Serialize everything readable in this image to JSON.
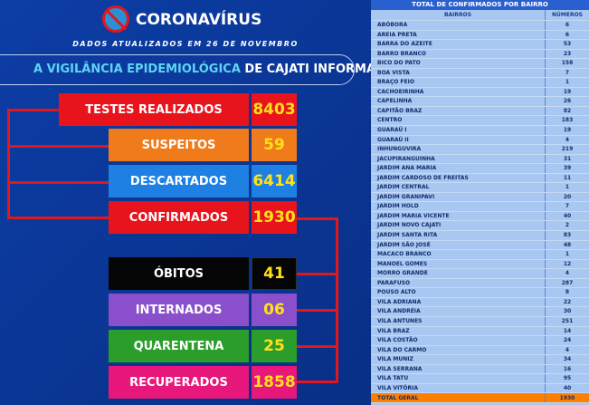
{
  "header": {
    "brand": "CORONAVÍRUS",
    "date": "DADOS ATUALIZADOS EM 26 DE NOVEMBRO",
    "headline_highlight": "A VIGILÂNCIA EPIDEMIOLÓGICA",
    "headline_rest": " DE CAJATI INFORMA:"
  },
  "stats": [
    {
      "label": "TESTES REALIZADOS",
      "value": "8403",
      "color": "#e8141b"
    },
    {
      "label": "SUSPEITOS",
      "value": "59",
      "color": "#ef7b1a"
    },
    {
      "label": "DESCARTADOS",
      "value": "6414",
      "color": "#1f80e3"
    },
    {
      "label": "CONFIRMADOS",
      "value": "1930",
      "color": "#e8141b"
    },
    {
      "label": "ÓBITOS",
      "value": "41",
      "color": "#050505"
    },
    {
      "label": "INTERNADOS",
      "value": "06",
      "color": "#8a4fcb"
    },
    {
      "label": "QUARENTENA",
      "value": "25",
      "color": "#2b9d2a"
    },
    {
      "label": "RECUPERADOS",
      "value": "1858",
      "color": "#e8177b"
    }
  ],
  "table": {
    "title": "TOTAL DE CONFIRMADOS POR BAIRRO",
    "col1": "BAIRROS",
    "col2": "NÚMEROS",
    "rows": [
      [
        "ABÓBORA",
        "6"
      ],
      [
        "AREIA PRETA",
        "6"
      ],
      [
        "BARRA DO AZEITE",
        "53"
      ],
      [
        "BARRO BRANCO",
        "23"
      ],
      [
        "BICO DO PATO",
        "158"
      ],
      [
        "BOA VISTA",
        "7"
      ],
      [
        "BRAÇO FEIO",
        "1"
      ],
      [
        "CACHOEIRINHA",
        "19"
      ],
      [
        "CAPELINHA",
        "26"
      ],
      [
        "CAPITÃO BRAZ",
        "82"
      ],
      [
        "CENTRO",
        "183"
      ],
      [
        "GUARAÚ I",
        "19"
      ],
      [
        "GUARAÚ II",
        "4"
      ],
      [
        "INHUNGUVIRA",
        "219"
      ],
      [
        "JACUPIRANGUINHA",
        "31"
      ],
      [
        "JARDIM ANA MARIA",
        "39"
      ],
      [
        "JARDIM CARDOSO DE FREITAS",
        "11"
      ],
      [
        "JARDIM CENTRAL",
        "1"
      ],
      [
        "JARDIM GRANIPAVI",
        "20"
      ],
      [
        "JARDIM HOLD",
        "7"
      ],
      [
        "JARDIM MARIA VICENTE",
        "40"
      ],
      [
        "JARDIM NOVO CAJATI",
        "2"
      ],
      [
        "JARDIM SANTA RITA",
        "83"
      ],
      [
        "JARDIM SÃO JOSÉ",
        "48"
      ],
      [
        "MACACO BRANCO",
        "1"
      ],
      [
        "MANOEL GOMES",
        "12"
      ],
      [
        "MORRO GRANDE",
        "4"
      ],
      [
        "PARAFUSO",
        "287"
      ],
      [
        "POUSO ALTO",
        "8"
      ],
      [
        "VILA ADRIANA",
        "22"
      ],
      [
        "VILA ANDRÉIA",
        "30"
      ],
      [
        "VILA ANTUNES",
        "251"
      ],
      [
        "VILA BRAZ",
        "14"
      ],
      [
        "VILA COSTÃO",
        "24"
      ],
      [
        "VILA DO CARMO",
        "4"
      ],
      [
        "VILA MUNIZ",
        "34"
      ],
      [
        "VILA SERRANA",
        "16"
      ],
      [
        "VILA TATU",
        "95"
      ],
      [
        "VILA VITÓRIA",
        "40"
      ]
    ],
    "total_label": "TOTAL GERAL",
    "total_value": "1930"
  }
}
